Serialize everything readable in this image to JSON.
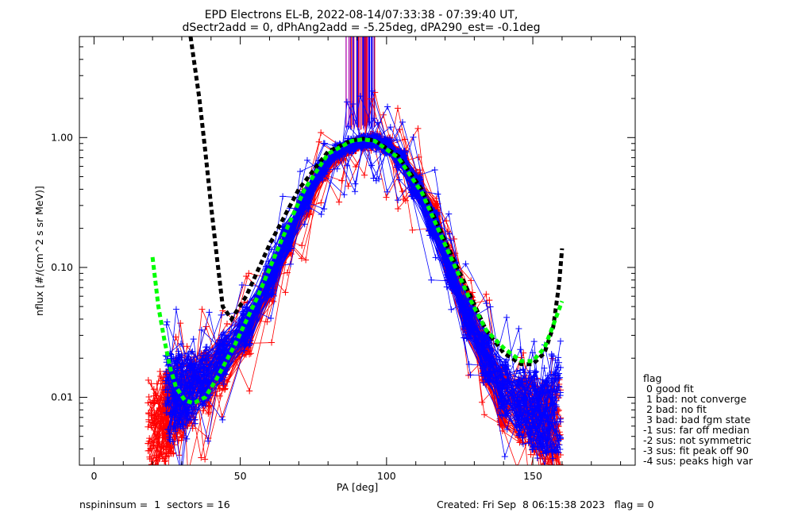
{
  "chart_data": {
    "type": "line",
    "title": "EPD Electrons EL-B, 2022-08-14/07:33:38 - 07:39:40 UT,",
    "subtitle": "dSectr2add = 0, dPhAng2add = -5.25deg, dPA290_est=  -0.1deg",
    "xlabel": "PA [deg]",
    "ylabel": "nflux [#/(cm^2 s sr MeV)]",
    "xlim": [
      -5,
      185
    ],
    "ylim": [
      0.003,
      6.0
    ],
    "yscale": "log",
    "x_ticks": [
      0,
      50,
      100,
      150
    ],
    "y_ticks": [
      {
        "value": 0.01,
        "label": "0.01"
      },
      {
        "value": 0.1,
        "label": "0.10"
      },
      {
        "value": 1.0,
        "label": "1.00"
      }
    ],
    "grid": false,
    "series": [
      {
        "color": "#ff0000",
        "style": "line-plus",
        "x": [
          20,
          24,
          26,
          29,
          33,
          38,
          44,
          52,
          60,
          66,
          72,
          78,
          84,
          88,
          92,
          96,
          100,
          105,
          110,
          116,
          122,
          128,
          134,
          140,
          146,
          150,
          154,
          158
        ],
        "y": [
          0.006,
          0.007,
          0.008,
          0.01,
          0.011,
          0.013,
          0.018,
          0.03,
          0.07,
          0.15,
          0.3,
          0.55,
          0.75,
          0.85,
          0.92,
          0.95,
          0.88,
          0.7,
          0.45,
          0.25,
          0.1,
          0.045,
          0.02,
          0.01,
          0.008,
          0.007,
          0.006,
          0.006
        ]
      },
      {
        "color": "#0000ff",
        "style": "line-plus",
        "x": [
          26,
          29,
          33,
          38,
          44,
          52,
          60,
          66,
          72,
          78,
          84,
          88,
          92,
          96,
          100,
          105,
          110,
          116,
          122,
          128,
          134,
          140,
          146,
          150,
          154,
          158
        ],
        "y": [
          0.01,
          0.011,
          0.012,
          0.014,
          0.02,
          0.035,
          0.08,
          0.17,
          0.33,
          0.58,
          0.8,
          0.88,
          0.93,
          0.94,
          0.86,
          0.68,
          0.42,
          0.22,
          0.09,
          0.04,
          0.02,
          0.012,
          0.009,
          0.008,
          0.008,
          0.009
        ]
      },
      {
        "color": "#000000",
        "style": "dashed-thick",
        "x": [
          33,
          36,
          38,
          40,
          42,
          44,
          47,
          52,
          60,
          70,
          80,
          88,
          92,
          96,
          104,
          112,
          120,
          128,
          134,
          140,
          146,
          150,
          154,
          157,
          159,
          160
        ],
        "y": [
          6.0,
          2.0,
          0.8,
          0.3,
          0.12,
          0.05,
          0.04,
          0.06,
          0.15,
          0.4,
          0.78,
          0.95,
          0.98,
          0.95,
          0.72,
          0.4,
          0.16,
          0.065,
          0.033,
          0.022,
          0.018,
          0.018,
          0.022,
          0.035,
          0.075,
          0.14
        ]
      },
      {
        "color": "#00ff00",
        "style": "dashed-thick",
        "x": [
          20,
          22,
          24,
          26,
          28,
          31,
          34,
          38,
          42,
          48,
          56,
          64,
          72,
          80,
          88,
          92,
          96,
          104,
          112,
          120,
          128,
          134,
          140,
          146,
          150,
          154,
          157,
          160
        ],
        "y": [
          0.12,
          0.05,
          0.028,
          0.017,
          0.012,
          0.0095,
          0.009,
          0.01,
          0.014,
          0.025,
          0.06,
          0.16,
          0.4,
          0.75,
          0.94,
          0.97,
          0.94,
          0.7,
          0.38,
          0.15,
          0.06,
          0.033,
          0.024,
          0.019,
          0.019,
          0.024,
          0.036,
          0.055
        ]
      }
    ],
    "spikes": {
      "range_deg": [
        86,
        96
      ],
      "y_bottom": 1.2,
      "colors": [
        "#0000ff",
        "#aa00aa",
        "#ff0000"
      ]
    },
    "legend_position": "right",
    "legend": {
      "title": "flag",
      "entries": [
        " 0 good fit",
        " 1 bad: not converge",
        " 2 bad: no fit",
        " 3 bad: bad fgm state",
        "-1 sus: far off median",
        "-2 sus: not symmetric",
        "-3 sus: fit peak off 90",
        "-4 sus: peaks high var"
      ]
    },
    "footer_left": "nspininsum =  1  sectors = 16",
    "footer_right": "Created: Fri Sep  8 06:15:38 2023   flag = 0"
  }
}
